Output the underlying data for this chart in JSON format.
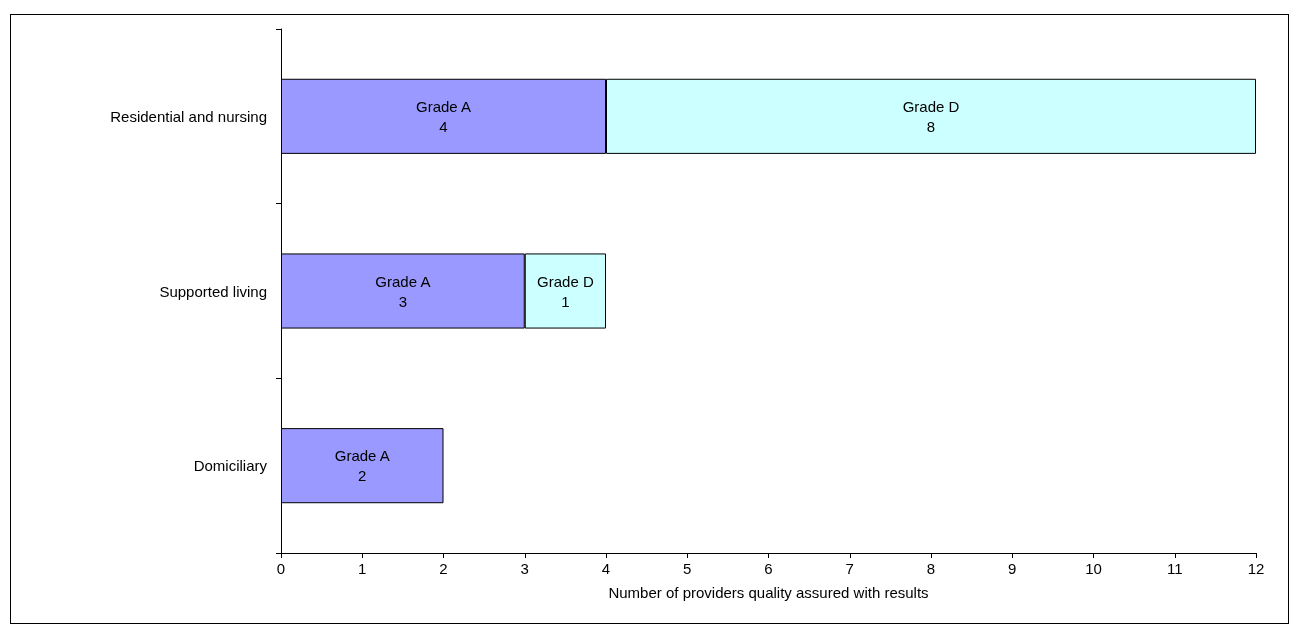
{
  "chart_data": {
    "type": "bar",
    "orientation": "horizontal",
    "stacked": true,
    "data_labels": true,
    "legend": false,
    "grid": false,
    "xlabel": "Number of providers quality assured with results",
    "categories": [
      "Residential and nursing",
      "Supported living",
      "Domiciliary"
    ],
    "series": [
      {
        "name": "Grade A",
        "color": "#9999ff",
        "values": [
          4,
          3,
          2
        ]
      },
      {
        "name": "Grade D",
        "color": "#ccffff",
        "values": [
          8,
          1,
          null
        ]
      }
    ],
    "xlim": [
      0,
      12
    ],
    "xticks": [
      0,
      1,
      2,
      3,
      4,
      5,
      6,
      7,
      8,
      9,
      10,
      11,
      12
    ]
  }
}
